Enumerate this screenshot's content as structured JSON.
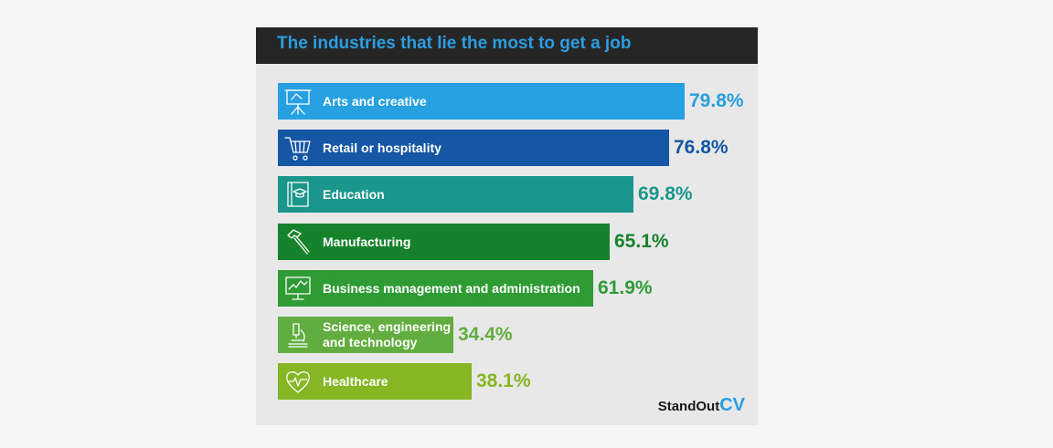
{
  "chart_data": {
    "type": "bar",
    "orientation": "horizontal",
    "title": "The industries that lie the most to get a job",
    "categories": [
      "Arts and creative",
      "Retail or hospitality",
      "Education",
      "Manufacturing",
      "Business management and administration",
      "Science, engineering and technology",
      "Healthcare"
    ],
    "values": [
      79.8,
      76.8,
      69.8,
      65.1,
      61.9,
      34.4,
      38.1
    ],
    "value_labels": [
      "79.8%",
      "76.8%",
      "69.8%",
      "65.1%",
      "61.9%",
      "34.4%",
      "38.1%"
    ],
    "colors": [
      "#26a0e0",
      "#1557a5",
      "#1a978a",
      "#17822c",
      "#2f9b35",
      "#62ad3f",
      "#86b623"
    ],
    "icons": [
      "presentation-easel-icon",
      "shopping-cart-icon",
      "book-graduation-cap-icon",
      "hammer-icon",
      "monitor-chart-icon",
      "microscope-icon",
      "heart-pulse-icon"
    ]
  },
  "brand": {
    "part1": "StandOut",
    "part2": "CV"
  }
}
